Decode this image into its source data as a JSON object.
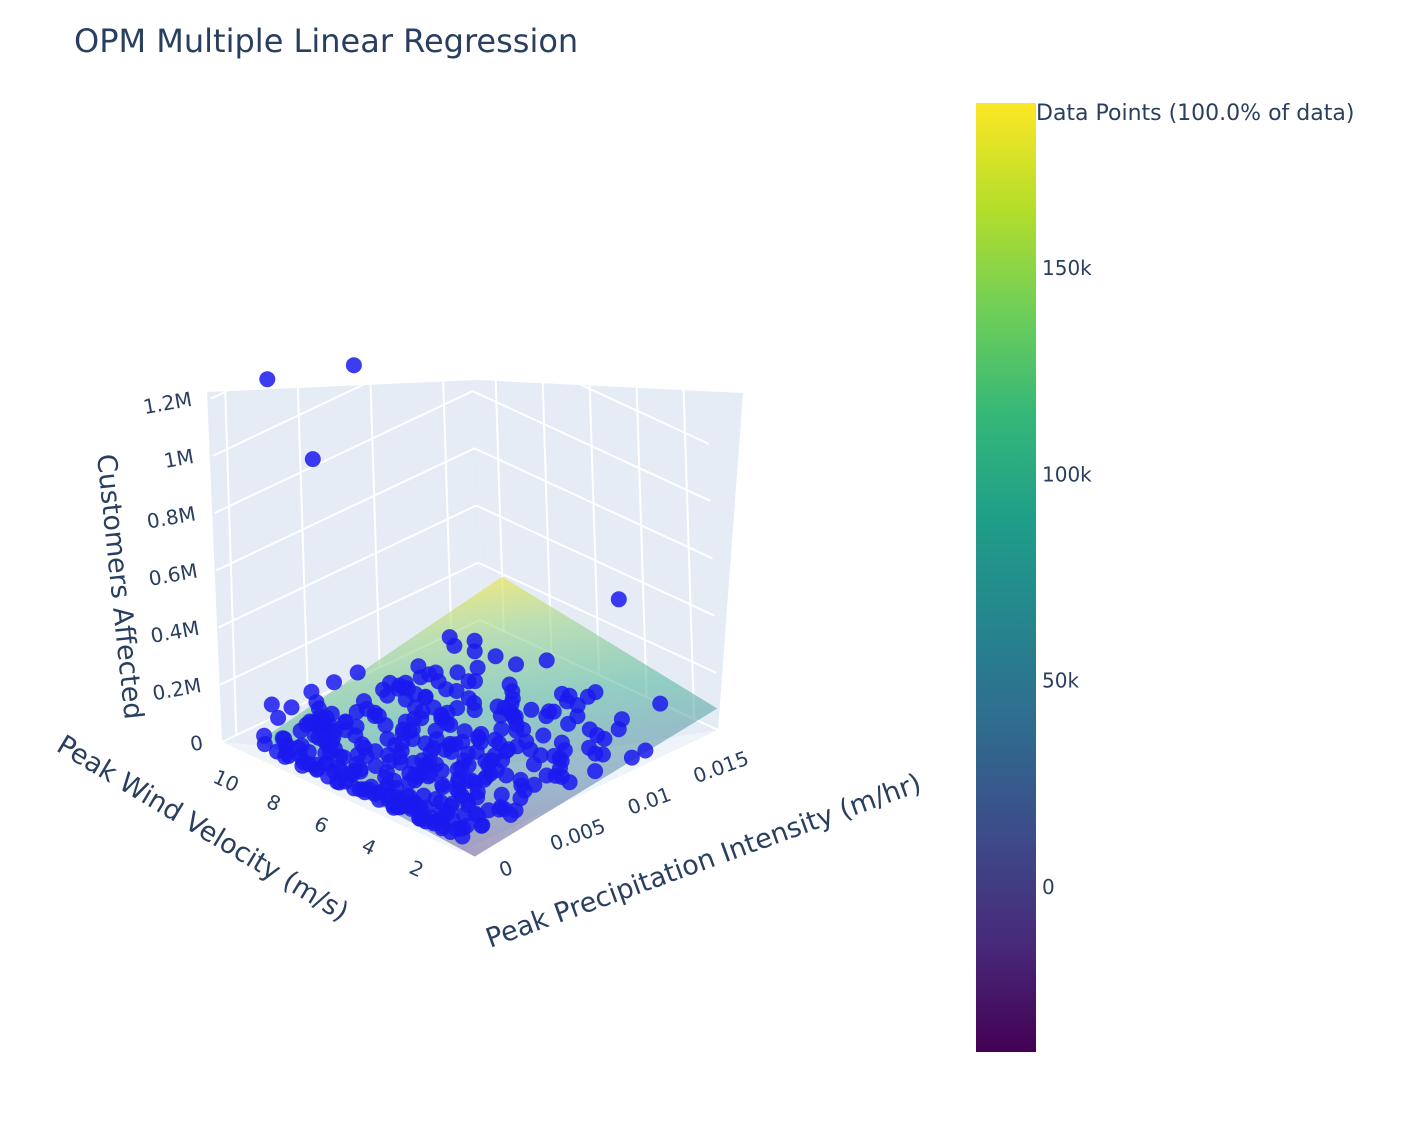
{
  "chart_data": {
    "type": "scatter3d",
    "title": "OPM Multiple Linear Regression",
    "axes": {
      "x": {
        "label": "Peak Precipitation Intensity (m/hr)",
        "ticks": [
          "0",
          "0.005",
          "0.01",
          "0.015"
        ],
        "range": [
          -0.001,
          0.017
        ]
      },
      "y": {
        "label": "Peak Wind Velocity (m/s)",
        "ticks": [
          "2",
          "4",
          "6",
          "8",
          "10"
        ],
        "range": [
          1,
          11
        ]
      },
      "z": {
        "label": "Customers Affected",
        "ticks": [
          "0",
          "0.2M",
          "0.4M",
          "0.6M",
          "0.8M",
          "1M",
          "1.2M"
        ],
        "range": [
          0,
          1300000
        ]
      }
    },
    "colorbar": {
      "title": "Data Points (100.0% of data)",
      "colorscale": "Viridis",
      "ticks": [
        "0",
        "50k",
        "100k",
        "150k"
      ],
      "tick_values": [
        0,
        50000,
        100000,
        150000
      ],
      "range": [
        -40000,
        190000
      ]
    },
    "regression_plane": {
      "corners": [
        {
          "x": 0,
          "y": 10,
          "z": 20000
        },
        {
          "x": 0.017,
          "y": 10,
          "z": 190000
        },
        {
          "x": 0.017,
          "y": 1,
          "z": 75000
        },
        {
          "x": 0,
          "y": 1,
          "z": -40000
        }
      ]
    },
    "outlier_points": [
      {
        "x": 0.0005,
        "y": 9.5,
        "z": 1290000
      },
      {
        "x": 0.006,
        "y": 9.2,
        "z": 1220000
      },
      {
        "x": 0.002,
        "y": 8.6,
        "z": 1010000
      },
      {
        "x": 0.0145,
        "y": 3.5,
        "z": 420000
      },
      {
        "x": 0.012,
        "y": 4.5,
        "z": 110000
      },
      {
        "x": 0.0135,
        "y": 4.0,
        "z": 100000
      },
      {
        "x": 0.0155,
        "y": 2.5,
        "z": 70000
      },
      {
        "x": 0.001,
        "y": 3.0,
        "z": 50000
      },
      {
        "x": 0.0,
        "y": 9.8,
        "z": 15000
      }
    ],
    "marker_color": "#1a1aee"
  }
}
